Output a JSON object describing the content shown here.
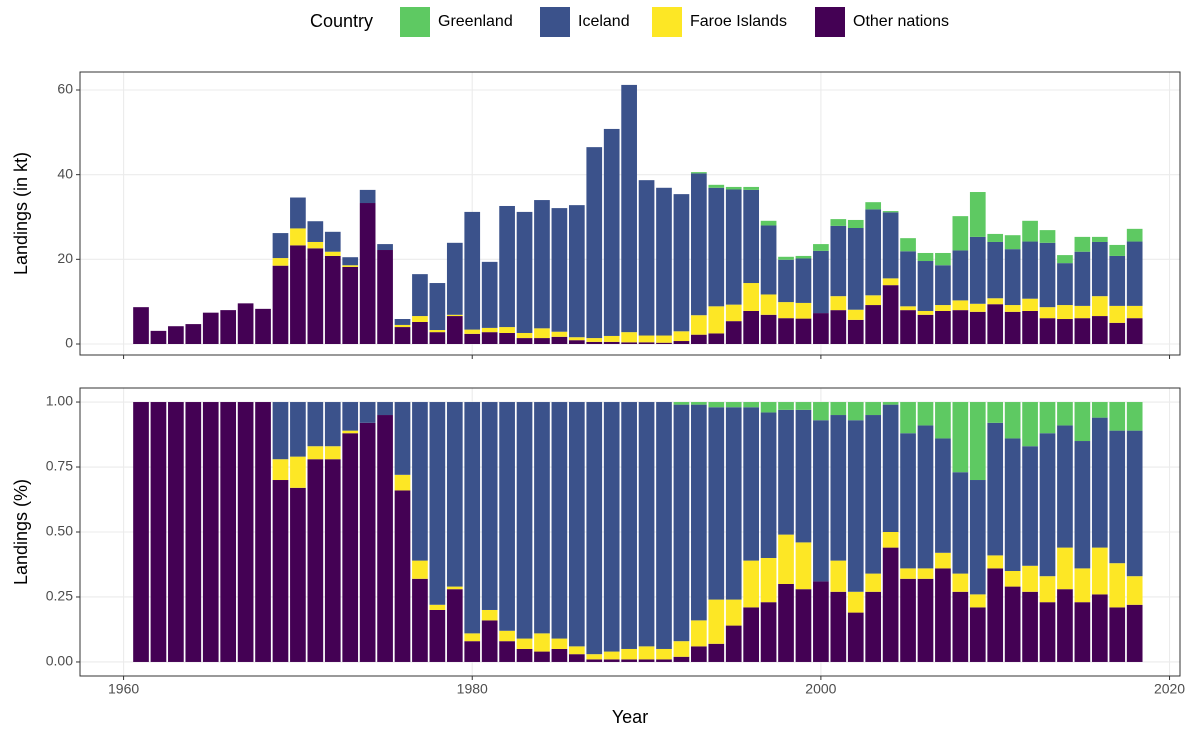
{
  "chart_data": [
    {
      "type": "bar",
      "stacked": true,
      "legend_title": "Country",
      "ylabel": "Landings (in kt)",
      "x": [
        1961,
        1962,
        1963,
        1964,
        1965,
        1966,
        1967,
        1968,
        1969,
        1970,
        1971,
        1972,
        1973,
        1974,
        1975,
        1976,
        1977,
        1978,
        1979,
        1980,
        1981,
        1982,
        1983,
        1984,
        1985,
        1986,
        1987,
        1988,
        1989,
        1990,
        1991,
        1992,
        1993,
        1994,
        1995,
        1996,
        1997,
        1998,
        1999,
        2000,
        2001,
        2002,
        2003,
        2004,
        2005,
        2006,
        2007,
        2008,
        2009,
        2010,
        2011,
        2012,
        2013,
        2014,
        2015,
        2016,
        2017,
        2018
      ],
      "xlim": [
        1957.5,
        2020.6
      ],
      "xticks": [
        1960,
        1980,
        2000,
        2020
      ],
      "ylim": [
        -2.6,
        64.25
      ],
      "yticks": [
        0,
        20,
        40,
        60
      ],
      "grid": true,
      "series": [
        {
          "name": "Greenland",
          "color": "#5ec962",
          "values": [
            0,
            0,
            0,
            0,
            0,
            0,
            0,
            0,
            0,
            0,
            0,
            0,
            0,
            0,
            0,
            0,
            0,
            0,
            0,
            0,
            0,
            0,
            0,
            0,
            0,
            0,
            0,
            0,
            0,
            0,
            0,
            0,
            0.3,
            0.7,
            0.6,
            0.7,
            1.1,
            0.7,
            0.6,
            1.6,
            1.6,
            1.9,
            1.7,
            0.3,
            3.1,
            1.9,
            2.9,
            8.1,
            10.6,
            1.9,
            3.3,
            4.9,
            3.0,
            1.9,
            3.5,
            1.2,
            2.6,
            3.0
          ]
        },
        {
          "name": "Iceland",
          "color": "#3b528b",
          "values": [
            0,
            0,
            0,
            0,
            0,
            0,
            0,
            0,
            5.9,
            7.3,
            4.9,
            4.7,
            1.9,
            3.1,
            1.4,
            1.4,
            9.9,
            11.1,
            17.0,
            27.8,
            15.6,
            28.6,
            28.6,
            30.3,
            29.2,
            31.2,
            45.1,
            48.9,
            58.4,
            36.7,
            34.9,
            32.4,
            33.5,
            28.0,
            27.2,
            22.0,
            16.3,
            10.0,
            10.5,
            14.7,
            16.6,
            19.3,
            20.3,
            15.6,
            13.0,
            11.8,
            9.4,
            11.8,
            15.8,
            13.3,
            13.2,
            13.5,
            15.2,
            9.9,
            12.8,
            12.8,
            11.8,
            15.2
          ]
        },
        {
          "name": "Faroe Islands",
          "color": "#fde725",
          "values": [
            0,
            0,
            0,
            0,
            0,
            0,
            0,
            0,
            1.8,
            4.0,
            1.5,
            1.0,
            0.4,
            0,
            0,
            0.5,
            1.4,
            0.5,
            0.3,
            1.0,
            1.0,
            1.4,
            1.2,
            2.3,
            1.2,
            0.7,
            0.9,
            1.4,
            2.4,
            1.6,
            1.7,
            2.3,
            4.6,
            6.4,
            3.9,
            6.6,
            4.8,
            3.8,
            3.7,
            0,
            3.3,
            2.4,
            2.3,
            1.6,
            0.9,
            0.9,
            1.4,
            2.3,
            1.9,
            1.4,
            1.6,
            2.9,
            2.6,
            3.3,
            2.9,
            4.7,
            4.0,
            2.9
          ]
        },
        {
          "name": "Other nations",
          "color": "#440154",
          "values": [
            8.7,
            3.1,
            4.2,
            4.7,
            7.4,
            8.0,
            9.6,
            8.3,
            18.5,
            23.3,
            22.6,
            20.8,
            18.2,
            33.3,
            22.2,
            4.0,
            5.2,
            2.8,
            6.6,
            2.4,
            2.8,
            2.6,
            1.4,
            1.4,
            1.7,
            0.9,
            0.5,
            0.5,
            0.4,
            0.4,
            0.3,
            0.7,
            2.2,
            2.5,
            5.4,
            7.8,
            6.9,
            6.1,
            6.0,
            7.3,
            8.0,
            5.7,
            9.2,
            13.9,
            8.0,
            6.9,
            7.8,
            8.0,
            7.6,
            9.4,
            7.6,
            7.8,
            6.1,
            5.9,
            6.1,
            6.6,
            5.0,
            6.1
          ]
        }
      ]
    },
    {
      "type": "bar",
      "stacked": true,
      "ylabel": "Landings (%)",
      "xlabel": "Year",
      "x": [
        1961,
        1962,
        1963,
        1964,
        1965,
        1966,
        1967,
        1968,
        1969,
        1970,
        1971,
        1972,
        1973,
        1974,
        1975,
        1976,
        1977,
        1978,
        1979,
        1980,
        1981,
        1982,
        1983,
        1984,
        1985,
        1986,
        1987,
        1988,
        1989,
        1990,
        1991,
        1992,
        1993,
        1994,
        1995,
        1996,
        1997,
        1998,
        1999,
        2000,
        2001,
        2002,
        2003,
        2004,
        2005,
        2006,
        2007,
        2008,
        2009,
        2010,
        2011,
        2012,
        2013,
        2014,
        2015,
        2016,
        2017,
        2018
      ],
      "xlim": [
        1957.5,
        2020.6
      ],
      "xticks": [
        1960,
        1980,
        2000,
        2020
      ],
      "ylim": [
        -0.054,
        1.054
      ],
      "yticks": [
        {
          "value": 0,
          "label": "0.00"
        },
        {
          "value": 0.25,
          "label": "0.25"
        },
        {
          "value": 0.5,
          "label": "0.50"
        },
        {
          "value": 0.75,
          "label": "0.75"
        },
        {
          "value": 1,
          "label": "1.00"
        }
      ],
      "grid": true,
      "series": [
        {
          "name": "Greenland",
          "color": "#5ec962",
          "values": [
            0,
            0,
            0,
            0,
            0,
            0,
            0,
            0,
            0,
            0,
            0,
            0,
            0,
            0,
            0,
            0,
            0,
            0,
            0,
            0,
            0,
            0,
            0,
            0,
            0,
            0,
            0,
            0,
            0,
            0,
            0,
            0.01,
            0.01,
            0.02,
            0.02,
            0.02,
            0.04,
            0.03,
            0.03,
            0.07,
            0.05,
            0.07,
            0.05,
            0.01,
            0.12,
            0.09,
            0.14,
            0.27,
            0.3,
            0.08,
            0.14,
            0.17,
            0.12,
            0.09,
            0.15,
            0.06,
            0.11,
            0.11
          ]
        },
        {
          "name": "Iceland",
          "color": "#3b528b",
          "values": [
            0,
            0,
            0,
            0,
            0,
            0,
            0,
            0,
            0.22,
            0.21,
            0.17,
            0.17,
            0.11,
            0.08,
            0.05,
            0.28,
            0.61,
            0.78,
            0.71,
            0.89,
            0.8,
            0.88,
            0.91,
            0.89,
            0.91,
            0.94,
            0.97,
            0.96,
            0.95,
            0.94,
            0.95,
            0.91,
            0.83,
            0.74,
            0.74,
            0.59,
            0.56,
            0.48,
            0.51,
            0.62,
            0.56,
            0.66,
            0.61,
            0.49,
            0.52,
            0.55,
            0.44,
            0.39,
            0.44,
            0.51,
            0.51,
            0.46,
            0.55,
            0.47,
            0.49,
            0.5,
            0.51,
            0.56
          ]
        },
        {
          "name": "Faroe Islands",
          "color": "#fde725",
          "values": [
            0,
            0,
            0,
            0,
            0,
            0,
            0,
            0,
            0.08,
            0.12,
            0.05,
            0.05,
            0.01,
            0,
            0,
            0.06,
            0.07,
            0.02,
            0.01,
            0.03,
            0.04,
            0.04,
            0.04,
            0.07,
            0.04,
            0.03,
            0.02,
            0.03,
            0.04,
            0.05,
            0.04,
            0.06,
            0.1,
            0.17,
            0.1,
            0.18,
            0.17,
            0.19,
            0.18,
            0,
            0.12,
            0.08,
            0.07,
            0.06,
            0.04,
            0.04,
            0.06,
            0.07,
            0.05,
            0.05,
            0.06,
            0.1,
            0.1,
            0.16,
            0.13,
            0.18,
            0.17,
            0.11
          ]
        },
        {
          "name": "Other nations",
          "color": "#440154",
          "values": [
            1,
            1,
            1,
            1,
            1,
            1,
            1,
            1,
            0.7,
            0.67,
            0.78,
            0.78,
            0.88,
            0.92,
            0.95,
            0.66,
            0.32,
            0.2,
            0.28,
            0.08,
            0.16,
            0.08,
            0.05,
            0.04,
            0.05,
            0.03,
            0.01,
            0.01,
            0.01,
            0.01,
            0.01,
            0.02,
            0.06,
            0.07,
            0.14,
            0.21,
            0.23,
            0.3,
            0.28,
            0.31,
            0.27,
            0.19,
            0.27,
            0.44,
            0.32,
            0.32,
            0.36,
            0.27,
            0.21,
            0.36,
            0.29,
            0.27,
            0.23,
            0.28,
            0.23,
            0.26,
            0.21,
            0.22
          ]
        }
      ]
    }
  ]
}
